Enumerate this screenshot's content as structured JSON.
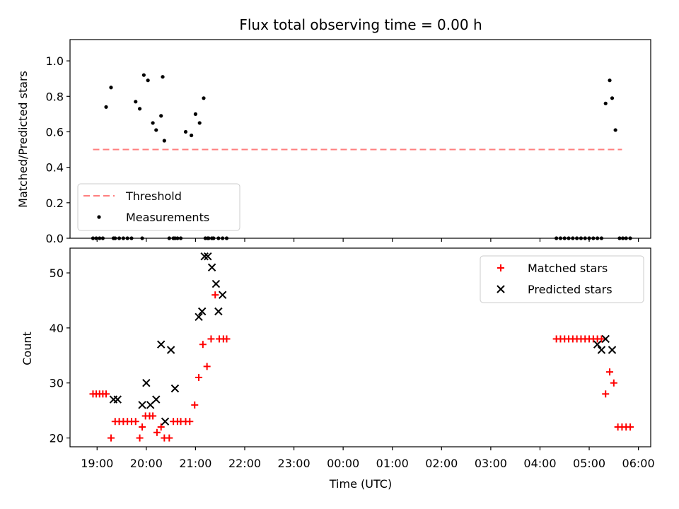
{
  "chart_data": [
    {
      "type": "scatter",
      "title": "Flux total observing time = 0.00 h",
      "xlabel": "",
      "ylabel": "Matched/Predicted stars",
      "ylim": [
        0,
        1.12
      ],
      "yticks": [
        "0.0",
        "0.2",
        "0.4",
        "0.6",
        "0.8",
        "1.0"
      ],
      "ytick_values": [
        0,
        0.2,
        0.4,
        0.6,
        0.8,
        1.0
      ],
      "xlim_hours": [
        18.45,
        30.25
      ],
      "legend_position": "lower-left",
      "series": [
        {
          "name": "Threshold",
          "kind": "dashed-line",
          "color": "#ff7f7f",
          "x": [
            "18:55",
            "05:40"
          ],
          "y": [
            0.5,
            0.5
          ]
        },
        {
          "name": "Measurements",
          "kind": "points",
          "color": "#000000",
          "x": [
            "18:55",
            "18:59",
            "19:03",
            "19:07",
            "19:11",
            "19:17",
            "19:20",
            "19:22",
            "19:27",
            "19:32",
            "19:37",
            "19:42",
            "19:47",
            "19:52",
            "19:55",
            "19:57",
            "20:02",
            "20:08",
            "20:12",
            "20:18",
            "20:22",
            "20:28",
            "20:33",
            "20:38",
            "20:42",
            "20:48",
            "20:55",
            "21:00",
            "21:05",
            "21:10",
            "21:12",
            "21:16",
            "21:22",
            "21:28",
            "21:33",
            "21:38",
            "20:20",
            "20:35",
            "21:15",
            "21:20",
            "04:25",
            "04:30",
            "04:35",
            "04:40",
            "04:45",
            "04:50",
            "04:55",
            "05:00",
            "05:05",
            "05:10",
            "05:15",
            "05:20",
            "05:25",
            "05:28",
            "05:32",
            "05:37",
            "05:41",
            "05:45",
            "05:50",
            "04:20"
          ],
          "y": [
            0,
            0,
            0,
            0,
            0.74,
            0.85,
            0,
            0,
            0,
            0,
            0,
            0,
            0.77,
            0.73,
            0,
            0.92,
            0.89,
            0.65,
            0.61,
            0.69,
            0.55,
            0,
            0,
            0,
            0,
            0.6,
            0.58,
            0.7,
            0.65,
            0.79,
            0,
            0,
            0,
            0,
            0,
            0,
            0.91,
            0,
            0,
            0,
            0,
            0,
            0,
            0,
            0,
            0,
            0,
            0,
            0,
            0,
            0,
            0.76,
            0.89,
            0.79,
            0.61,
            0,
            0,
            0,
            0,
            0
          ]
        }
      ]
    },
    {
      "type": "scatter",
      "title": "",
      "xlabel": "Time (UTC)",
      "ylabel": "Count",
      "ylim": [
        18.4,
        54.5
      ],
      "yticks": [
        "20",
        "30",
        "40",
        "50"
      ],
      "ytick_values": [
        20,
        30,
        40,
        50
      ],
      "xlim_hours": [
        18.45,
        30.25
      ],
      "xticks": [
        "19:00",
        "20:00",
        "21:00",
        "22:00",
        "23:00",
        "00:00",
        "01:00",
        "02:00",
        "03:00",
        "04:00",
        "05:00",
        "06:00"
      ],
      "legend_position": "upper-right",
      "series": [
        {
          "name": "Matched stars",
          "kind": "plus",
          "color": "#ff0000",
          "x": [
            "18:55",
            "18:59",
            "19:03",
            "19:07",
            "19:11",
            "19:17",
            "19:22",
            "19:27",
            "19:32",
            "19:37",
            "19:42",
            "19:47",
            "19:52",
            "19:55",
            "19:59",
            "20:04",
            "20:08",
            "20:13",
            "20:18",
            "20:22",
            "20:28",
            "20:33",
            "20:38",
            "20:42",
            "20:48",
            "20:53",
            "20:59",
            "21:04",
            "21:09",
            "21:14",
            "21:19",
            "21:24",
            "21:29",
            "21:34",
            "21:38",
            "04:20",
            "04:25",
            "04:30",
            "04:35",
            "04:40",
            "04:45",
            "04:50",
            "04:55",
            "05:00",
            "05:05",
            "05:10",
            "05:15",
            "05:20",
            "05:25",
            "05:30",
            "05:35",
            "05:40",
            "05:45",
            "05:50"
          ],
          "y": [
            28,
            28,
            28,
            28,
            28,
            20,
            23,
            23,
            23,
            23,
            23,
            23,
            20,
            22,
            24,
            24,
            24,
            21,
            22,
            20,
            20,
            23,
            23,
            23,
            23,
            23,
            26,
            31,
            37,
            33,
            38,
            46,
            38,
            38,
            38,
            38,
            38,
            38,
            38,
            38,
            38,
            38,
            38,
            38,
            38,
            38,
            38,
            28,
            32,
            30,
            22,
            22,
            22,
            22
          ]
        },
        {
          "name": "Predicted stars",
          "kind": "x",
          "color": "#000000",
          "x": [
            "19:20",
            "19:25",
            "19:55",
            "20:00",
            "20:05",
            "20:12",
            "20:18",
            "20:23",
            "20:30",
            "20:35",
            "21:04",
            "21:08",
            "21:11",
            "21:15",
            "21:20",
            "21:25",
            "21:28",
            "21:33",
            "05:10",
            "05:15",
            "05:20",
            "05:28"
          ],
          "y": [
            27,
            27,
            26,
            30,
            26,
            27,
            37,
            23,
            36,
            29,
            42,
            43,
            53,
            53,
            51,
            48,
            43,
            46,
            37,
            36,
            38,
            36
          ]
        }
      ]
    }
  ]
}
